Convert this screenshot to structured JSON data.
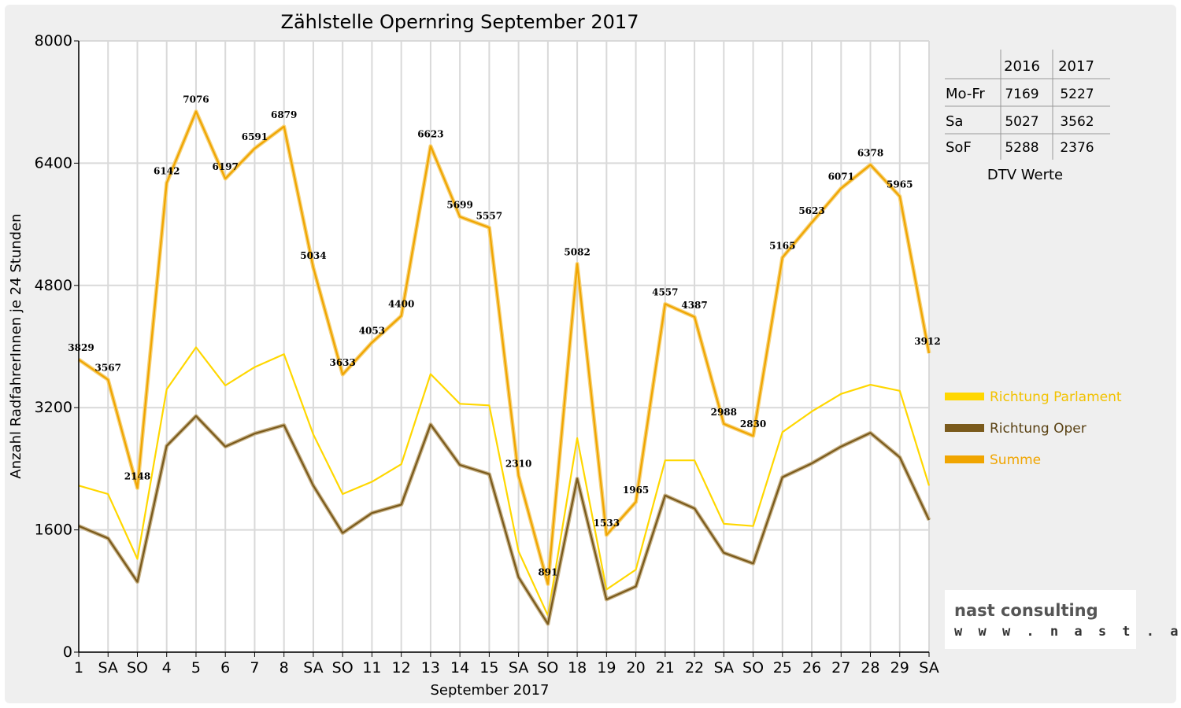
{
  "chart_data": {
    "type": "line",
    "title": "Zählstelle Opernring September 2017",
    "xlabel": "September 2017",
    "ylabel": "Anzahl RadfahrerInnen je 24 Stunden",
    "ylim": [
      0,
      8000
    ],
    "yticks": [
      "0",
      "1600",
      "3200",
      "4800",
      "6400",
      "8000"
    ],
    "grid": true,
    "legend_position": "right",
    "categories": [
      "1",
      "SA",
      "SO",
      "4",
      "5",
      "6",
      "7",
      "8",
      "SA",
      "SO",
      "11",
      "12",
      "13",
      "14",
      "15",
      "SA",
      "SO",
      "18",
      "19",
      "20",
      "21",
      "22",
      "SA",
      "SO",
      "25",
      "26",
      "27",
      "28",
      "29",
      "SA"
    ],
    "sunday_color": "#ff0000",
    "series": [
      {
        "name": "Richtung Parlament",
        "color": "#ffd700",
        "values": [
          2180,
          2070,
          1220,
          3440,
          3990,
          3490,
          3730,
          3900,
          2850,
          2070,
          2230,
          2460,
          3640,
          3250,
          3230,
          1320,
          480,
          2800,
          820,
          1080,
          2510,
          2510,
          1680,
          1650,
          2880,
          3150,
          3380,
          3500,
          3420,
          2180
        ]
      },
      {
        "name": "Richtung Oper",
        "color": "#7a5a1c",
        "values": [
          1650,
          1490,
          920,
          2700,
          3090,
          2690,
          2860,
          2970,
          2180,
          1560,
          1820,
          1930,
          2980,
          2450,
          2330,
          980,
          370,
          2270,
          690,
          860,
          2050,
          1880,
          1300,
          1160,
          2290,
          2470,
          2690,
          2870,
          2550,
          1730
        ]
      },
      {
        "name": "Summe",
        "color": "#f0a500",
        "values": [
          3829,
          3567,
          2148,
          6142,
          7076,
          6197,
          6591,
          6879,
          5034,
          3633,
          4053,
          4400,
          6623,
          5699,
          5557,
          2310,
          891,
          5082,
          1533,
          1965,
          4557,
          4387,
          2988,
          2830,
          5165,
          5623,
          6071,
          6378,
          5965,
          3912
        ],
        "labels": [
          "3829",
          "3567",
          "2148",
          "6142",
          "7076",
          "6197",
          "6591",
          "6879",
          "5034",
          "3633",
          "4053",
          "4400",
          "6623",
          "5699",
          "5557",
          "2310",
          "891",
          "5082",
          "1533",
          "1965",
          "4557",
          "4387",
          "2988",
          "2830",
          "5165",
          "5623",
          "6071",
          "6378",
          "5965",
          "3912"
        ]
      }
    ]
  },
  "dtv_table": {
    "columns": [
      "2016",
      "2017"
    ],
    "rows": [
      {
        "label": "Mo-Fr",
        "v2016": "7169",
        "v2017": "5227"
      },
      {
        "label": "Sa",
        "v2016": "5027",
        "v2017": "3562"
      },
      {
        "label": "SoF",
        "v2016": "5288",
        "v2017": "2376"
      }
    ],
    "caption": "DTV Werte"
  },
  "logo": {
    "name": "nast consulting",
    "url": "w w w . n a s t . a t"
  }
}
